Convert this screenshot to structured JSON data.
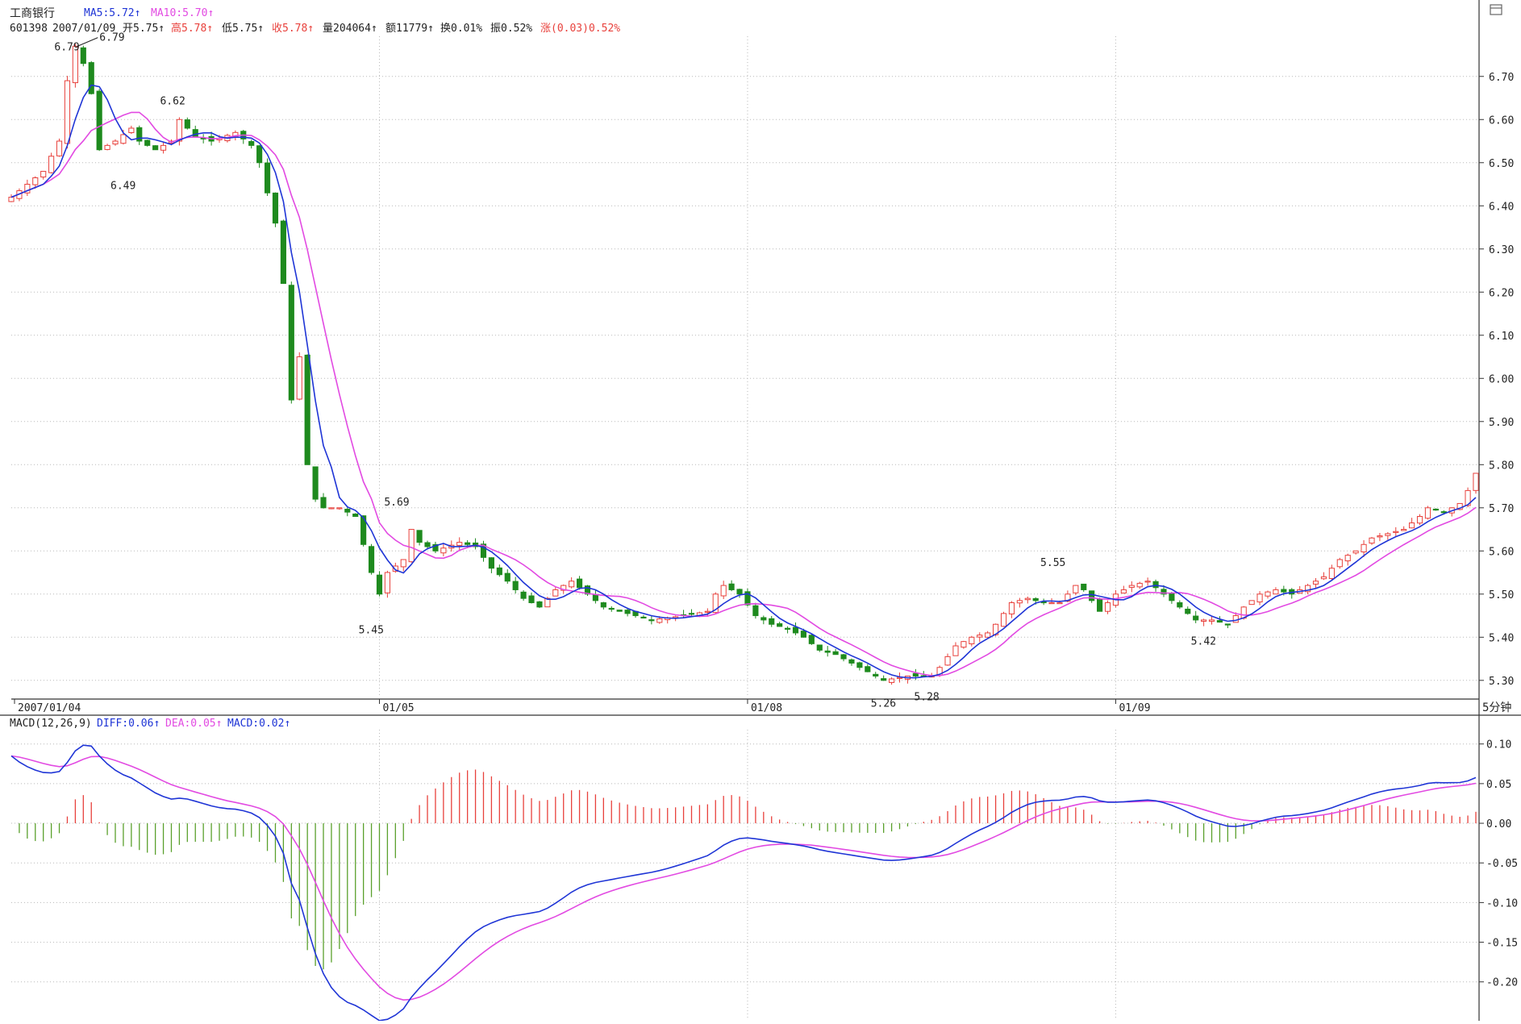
{
  "header": {
    "stock_name": "工商银行",
    "ma5": "MA5:5.72↑",
    "ma10": "MA10:5.70↑",
    "code": "601398",
    "date": "2007/01/09",
    "open": "开5.75↑",
    "high": "高5.78↑",
    "low": "低5.75↑",
    "close": "收5.78↑",
    "volume": "量204064↑",
    "amount": "额11779↑",
    "turnover": "换0.01%",
    "amplitude": "振0.52%",
    "change": "涨(0.03)0.52%"
  },
  "corner_icon": "window-restore-icon",
  "period_label": "5分钟",
  "macd_header": {
    "name": "MACD(12,26,9)",
    "diff": "DIFF:0.06↑",
    "dea": "DEA:0.05↑",
    "macd": "MACD:0.02↑"
  },
  "colors": {
    "up": "#e8413c",
    "down": "#1e8a1e",
    "ma5": "#1f35d6",
    "ma10": "#e24ae2",
    "diff": "#1f35d6",
    "dea": "#e24ae2",
    "macd_up": "#e8413c",
    "macd_down": "#5aa02c",
    "grid": "#b8b8b8",
    "axis": "#333333"
  },
  "chart_data": [
    {
      "type": "candlestick",
      "y_ticks": [
        "6.70",
        "6.60",
        "6.50",
        "6.40",
        "6.30",
        "6.20",
        "6.10",
        "6.00",
        "5.90",
        "5.80",
        "5.70",
        "5.60",
        "5.50",
        "5.40",
        "5.30"
      ],
      "ylim": [
        5.266,
        6.793
      ],
      "x_labels": [
        "2007/01/04",
        "01/05",
        "01/08",
        "01/09"
      ],
      "annotations": [
        "6.79",
        "6.79",
        "6.49",
        "6.62",
        "5.69",
        "5.45",
        "5.26",
        "5.28",
        "5.55",
        "5.42"
      ],
      "anchors": [
        [
          0,
          6.42
        ],
        [
          2,
          6.45
        ],
        [
          4,
          6.48
        ],
        [
          6,
          6.55
        ],
        [
          7,
          6.69
        ],
        [
          8,
          6.77
        ],
        [
          9,
          6.73
        ],
        [
          10,
          6.66
        ],
        [
          11,
          6.53
        ],
        [
          13,
          6.55
        ],
        [
          15,
          6.58
        ],
        [
          16,
          6.55
        ],
        [
          18,
          6.53
        ],
        [
          20,
          6.55
        ],
        [
          21,
          6.6
        ],
        [
          23,
          6.56
        ],
        [
          25,
          6.55
        ],
        [
          28,
          6.57
        ],
        [
          30,
          6.54
        ],
        [
          31,
          6.5
        ],
        [
          33,
          6.36
        ],
        [
          34,
          6.22
        ],
        [
          35,
          5.95
        ],
        [
          36,
          6.05
        ],
        [
          37,
          5.8
        ],
        [
          38,
          5.72
        ],
        [
          39,
          5.7
        ],
        [
          41,
          5.7
        ],
        [
          43,
          5.68
        ],
        [
          45,
          5.55
        ],
        [
          46,
          5.5
        ],
        [
          47,
          5.55
        ],
        [
          49,
          5.58
        ],
        [
          50,
          5.65
        ],
        [
          51,
          5.62
        ],
        [
          53,
          5.6
        ],
        [
          56,
          5.62
        ],
        [
          58,
          5.61
        ],
        [
          60,
          5.56
        ],
        [
          62,
          5.53
        ],
        [
          64,
          5.49
        ],
        [
          66,
          5.47
        ],
        [
          68,
          5.51
        ],
        [
          70,
          5.53
        ],
        [
          72,
          5.5
        ],
        [
          74,
          5.47
        ],
        [
          76,
          5.46
        ],
        [
          78,
          5.45
        ],
        [
          80,
          5.44
        ],
        [
          84,
          5.45
        ],
        [
          87,
          5.46
        ],
        [
          88,
          5.5
        ],
        [
          89,
          5.52
        ],
        [
          91,
          5.5
        ],
        [
          93,
          5.45
        ],
        [
          95,
          5.43
        ],
        [
          97,
          5.42
        ],
        [
          99,
          5.4
        ],
        [
          101,
          5.37
        ],
        [
          103,
          5.36
        ],
        [
          105,
          5.34
        ],
        [
          107,
          5.32
        ],
        [
          109,
          5.3
        ],
        [
          112,
          5.31
        ],
        [
          115,
          5.31
        ],
        [
          116,
          5.33
        ],
        [
          118,
          5.38
        ],
        [
          120,
          5.4
        ],
        [
          122,
          5.41
        ],
        [
          123,
          5.43
        ],
        [
          125,
          5.48
        ],
        [
          127,
          5.49
        ],
        [
          129,
          5.48
        ],
        [
          131,
          5.48
        ],
        [
          133,
          5.52
        ],
        [
          134,
          5.51
        ],
        [
          136,
          5.46
        ],
        [
          138,
          5.5
        ],
        [
          140,
          5.52
        ],
        [
          142,
          5.53
        ],
        [
          144,
          5.5
        ],
        [
          146,
          5.47
        ],
        [
          148,
          5.44
        ],
        [
          150,
          5.44
        ],
        [
          152,
          5.43
        ],
        [
          154,
          5.47
        ],
        [
          156,
          5.5
        ],
        [
          158,
          5.51
        ],
        [
          160,
          5.5
        ],
        [
          162,
          5.52
        ],
        [
          164,
          5.54
        ],
        [
          166,
          5.58
        ],
        [
          168,
          5.6
        ],
        [
          170,
          5.63
        ],
        [
          172,
          5.64
        ],
        [
          174,
          5.65
        ],
        [
          176,
          5.68
        ],
        [
          177,
          5.7
        ],
        [
          179,
          5.69
        ],
        [
          181,
          5.71
        ],
        [
          182,
          5.74
        ],
        [
          183,
          5.78
        ]
      ]
    },
    {
      "type": "bar",
      "y_ticks": [
        "0.10",
        "0.05",
        "0.00",
        "-0.05",
        "-0.10",
        "-0.15",
        "-0.20"
      ],
      "ylim": [
        -0.245,
        0.118
      ]
    }
  ]
}
